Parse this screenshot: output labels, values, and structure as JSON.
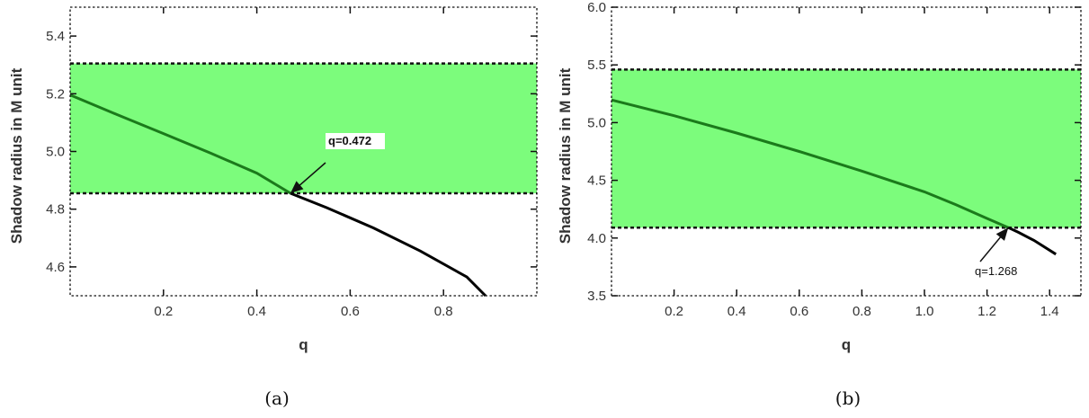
{
  "chart_data": [
    {
      "type": "line",
      "panel_label": "(a)",
      "xlabel": "q",
      "ylabel": "Shadow radius in M unit",
      "xlim": [
        0.0,
        1.0
      ],
      "ylim": [
        4.5,
        5.5
      ],
      "xticks": [
        0.2,
        0.4,
        0.6,
        0.8
      ],
      "xtick_labels": [
        "0.2",
        "0.4",
        "0.6",
        "0.8"
      ],
      "yticks": [
        4.6,
        4.8,
        5.0,
        5.2,
        5.4
      ],
      "ytick_labels": [
        "4.6",
        "4.8",
        "5.0",
        "5.2",
        "5.4"
      ],
      "band": {
        "ymin": 4.855,
        "ymax": 5.305,
        "color": "#7cfc7c"
      },
      "series": [
        {
          "x": [
            0.0,
            0.1,
            0.2,
            0.3,
            0.4,
            0.472,
            0.55,
            0.65,
            0.75,
            0.85,
            0.89
          ],
          "y": [
            5.196,
            5.128,
            5.062,
            4.995,
            4.925,
            4.855,
            4.805,
            4.735,
            4.655,
            4.565,
            4.5
          ],
          "color_inside_band": "#1b7a1b",
          "color_outside_band": "#000000"
        }
      ],
      "annotation": {
        "text": "q=0.472",
        "x": 0.472,
        "y": 4.855,
        "bold": true
      }
    },
    {
      "type": "line",
      "panel_label": "(b)",
      "xlabel": "q",
      "ylabel": "Shadow radius in M unit",
      "xlim": [
        0.0,
        1.5
      ],
      "ylim": [
        3.5,
        6.0
      ],
      "xticks": [
        0.2,
        0.4,
        0.6,
        0.8,
        1.0,
        1.2,
        1.4
      ],
      "xtick_labels": [
        "0.2",
        "0.4",
        "0.6",
        "0.8",
        "1.0",
        "1.2",
        "1.4"
      ],
      "yticks": [
        3.5,
        4.0,
        4.5,
        5.0,
        5.5,
        6.0
      ],
      "ytick_labels": [
        "3.5",
        "4.0",
        "4.5",
        "5.0",
        "5.5",
        "6.0"
      ],
      "band": {
        "ymin": 4.09,
        "ymax": 5.46,
        "color": "#7cfc7c"
      },
      "series": [
        {
          "x": [
            0.0,
            0.2,
            0.4,
            0.6,
            0.8,
            1.0,
            1.1,
            1.2,
            1.268,
            1.3,
            1.35,
            1.42
          ],
          "y": [
            5.196,
            5.06,
            4.91,
            4.75,
            4.58,
            4.4,
            4.29,
            4.17,
            4.09,
            4.05,
            3.98,
            3.86
          ],
          "color_inside_band": "#1b7a1b",
          "color_outside_band": "#000000"
        }
      ],
      "annotation": {
        "text": "q=1.268",
        "x": 1.268,
        "y": 4.09,
        "bold": false
      }
    }
  ]
}
